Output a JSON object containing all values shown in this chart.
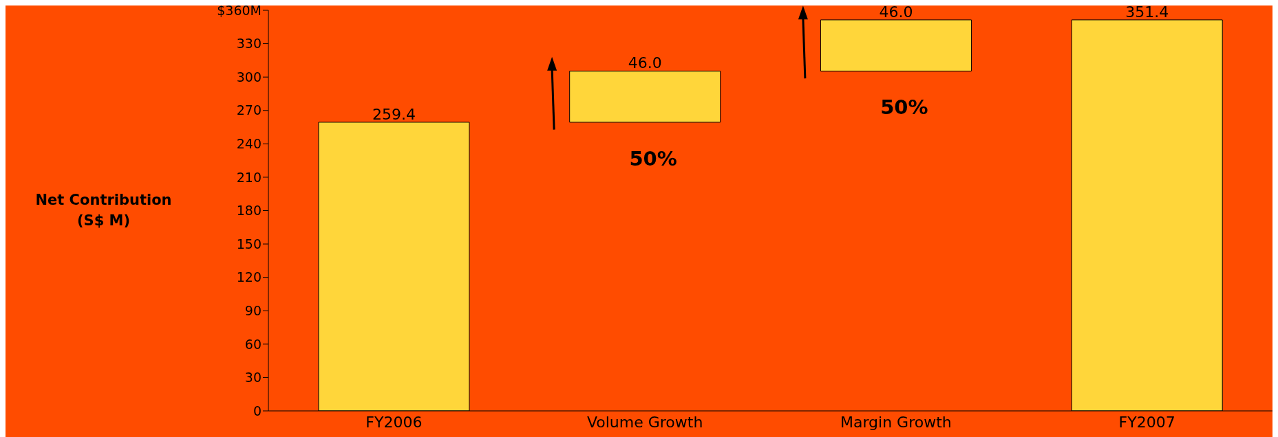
{
  "chart_data": {
    "type": "bar",
    "ylabel": "Net Contribution\n(S$ M)",
    "categories": [
      "FY2006",
      "Volume Growth",
      "Margin Growth",
      "FY2007"
    ],
    "values": [
      259.4,
      46.0,
      46.0,
      351.4
    ],
    "base": [
      0,
      259.4,
      305.4,
      0
    ],
    "value_labels": [
      "259.4",
      "46.0",
      "46.0",
      "351.4"
    ],
    "color": "#ffd63a",
    "ylim": [
      0,
      360
    ],
    "yticks": [
      0,
      30,
      60,
      90,
      120,
      150,
      180,
      210,
      240,
      270,
      300,
      330,
      {
        "value": 360,
        "label": "$360M"
      }
    ],
    "grid": false,
    "legend": false,
    "annotations": [
      "50%",
      "50%"
    ]
  }
}
